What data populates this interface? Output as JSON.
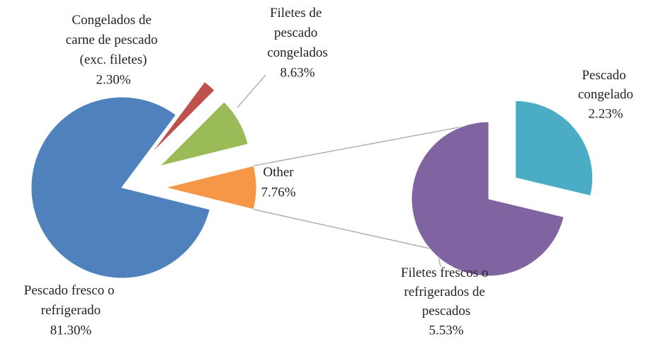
{
  "chart_data": {
    "type": "pie-of-pie",
    "main": {
      "categories": [
        "Pescado fresco o refrigerado",
        "Congelados de carne de pescado (exc. filetes)",
        "Filetes de pescado congelados",
        "Other"
      ],
      "values": [
        81.3,
        2.3,
        8.63,
        7.76
      ],
      "value_labels": [
        "81.30%",
        "2.30%",
        "8.63%",
        "7.76%"
      ],
      "colors": [
        "#4f81bd",
        "#c0504d",
        "#9bbb59",
        "#f79646"
      ]
    },
    "secondary": {
      "categories": [
        "Pescado congelado",
        "Filetes frescos o refrigerados de pescados"
      ],
      "values": [
        2.23,
        5.53
      ],
      "value_labels": [
        "2.23%",
        "5.53%"
      ],
      "colors": [
        "#4bacc6",
        "#8064a2"
      ]
    }
  }
}
